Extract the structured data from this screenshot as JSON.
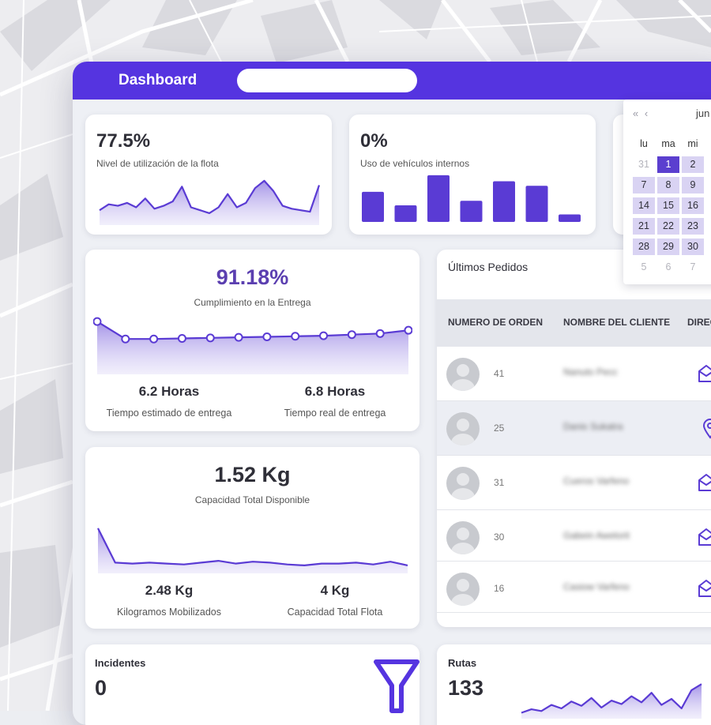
{
  "header": {
    "title": "Dashboard",
    "search_placeholder": ""
  },
  "kpis": {
    "fleet": {
      "value": "77.5%",
      "label": "Nivel de utilización de la flota"
    },
    "internal": {
      "value": "0%",
      "label": "Uso de vehículos internos"
    }
  },
  "delivery": {
    "value": "91.18%",
    "label": "Cumplimiento en la Entrega",
    "estimated": {
      "value": "6.2 Horas",
      "label": "Tiempo estimado de entrega"
    },
    "real": {
      "value": "6.8 Horas",
      "label": "Tiempo real de entrega"
    }
  },
  "capacity": {
    "value": "1.52 Kg",
    "label": "Capacidad Total Disponible",
    "mobilized": {
      "value": "2.48 Kg",
      "label": "Kilogramos Mobilizados"
    },
    "fleet": {
      "value": "4 Kg",
      "label": "Capacidad Total Flota"
    }
  },
  "orders": {
    "title": "Últimos Pedidos",
    "columns": [
      "NUMERO DE ORDEN",
      "NOMBRE DEL CLIENTE",
      "DIREC"
    ],
    "rows": [
      {
        "order": "41",
        "client": "Nanuto Pecc",
        "icon": "envelope-icon"
      },
      {
        "order": "25",
        "client": "Danis Sukatra",
        "icon": "location-pin-icon"
      },
      {
        "order": "31",
        "client": "Cueros Varfeno",
        "icon": "envelope-icon"
      },
      {
        "order": "30",
        "client": "Gabein Awelorit",
        "icon": "envelope-icon"
      },
      {
        "order": "16",
        "client": "Casiow Varfeno",
        "icon": "envelope-icon"
      }
    ]
  },
  "incidents": {
    "label": "Incidentes",
    "value": "0"
  },
  "routes": {
    "label": "Rutas",
    "value": "133"
  },
  "calendar": {
    "nav": "« ‹",
    "month": "jun",
    "days_header": [
      "lu",
      "ma",
      "mi"
    ],
    "weeks": [
      [
        {
          "d": "31",
          "s": "mute"
        },
        {
          "d": "1",
          "s": "sel"
        },
        {
          "d": "2",
          "s": "in"
        }
      ],
      [
        {
          "d": "7",
          "s": "in"
        },
        {
          "d": "8",
          "s": "in"
        },
        {
          "d": "9",
          "s": "in"
        }
      ],
      [
        {
          "d": "14",
          "s": "in"
        },
        {
          "d": "15",
          "s": "in"
        },
        {
          "d": "16",
          "s": "in"
        }
      ],
      [
        {
          "d": "21",
          "s": "in"
        },
        {
          "d": "22",
          "s": "in"
        },
        {
          "d": "23",
          "s": "in"
        }
      ],
      [
        {
          "d": "28",
          "s": "in"
        },
        {
          "d": "29",
          "s": "in"
        },
        {
          "d": "30",
          "s": "in"
        }
      ],
      [
        {
          "d": "5",
          "s": "mute"
        },
        {
          "d": "6",
          "s": "mute"
        },
        {
          "d": "7",
          "s": "mute"
        }
      ]
    ]
  },
  "chart_data": [
    {
      "type": "area",
      "values": [
        18,
        26,
        24,
        28,
        22,
        34,
        20,
        24,
        30,
        50,
        22,
        18,
        14,
        22,
        40,
        22,
        28,
        48,
        58,
        44,
        24,
        20,
        18,
        16,
        52
      ]
    },
    {
      "type": "bar",
      "values": [
        40,
        22,
        62,
        28,
        54,
        48,
        10
      ]
    },
    {
      "type": "line",
      "values": [
        94,
        62,
        62,
        63,
        64,
        65,
        66,
        67,
        68,
        70,
        72,
        78
      ]
    },
    {
      "type": "area",
      "values": [
        95,
        20,
        18,
        20,
        18,
        16,
        20,
        24,
        18,
        22,
        20,
        16,
        14,
        18,
        18,
        20,
        16,
        22,
        14
      ]
    },
    {
      "type": "area",
      "values": [
        10,
        18,
        14,
        28,
        20,
        36,
        26,
        44,
        22,
        38,
        30,
        48,
        34,
        56,
        28,
        42,
        20,
        62,
        76
      ]
    },
    {
      "colors": {
        "accent": "#5534e0",
        "fill": "#c9bff1",
        "line": "#5a3bd4"
      }
    }
  ]
}
